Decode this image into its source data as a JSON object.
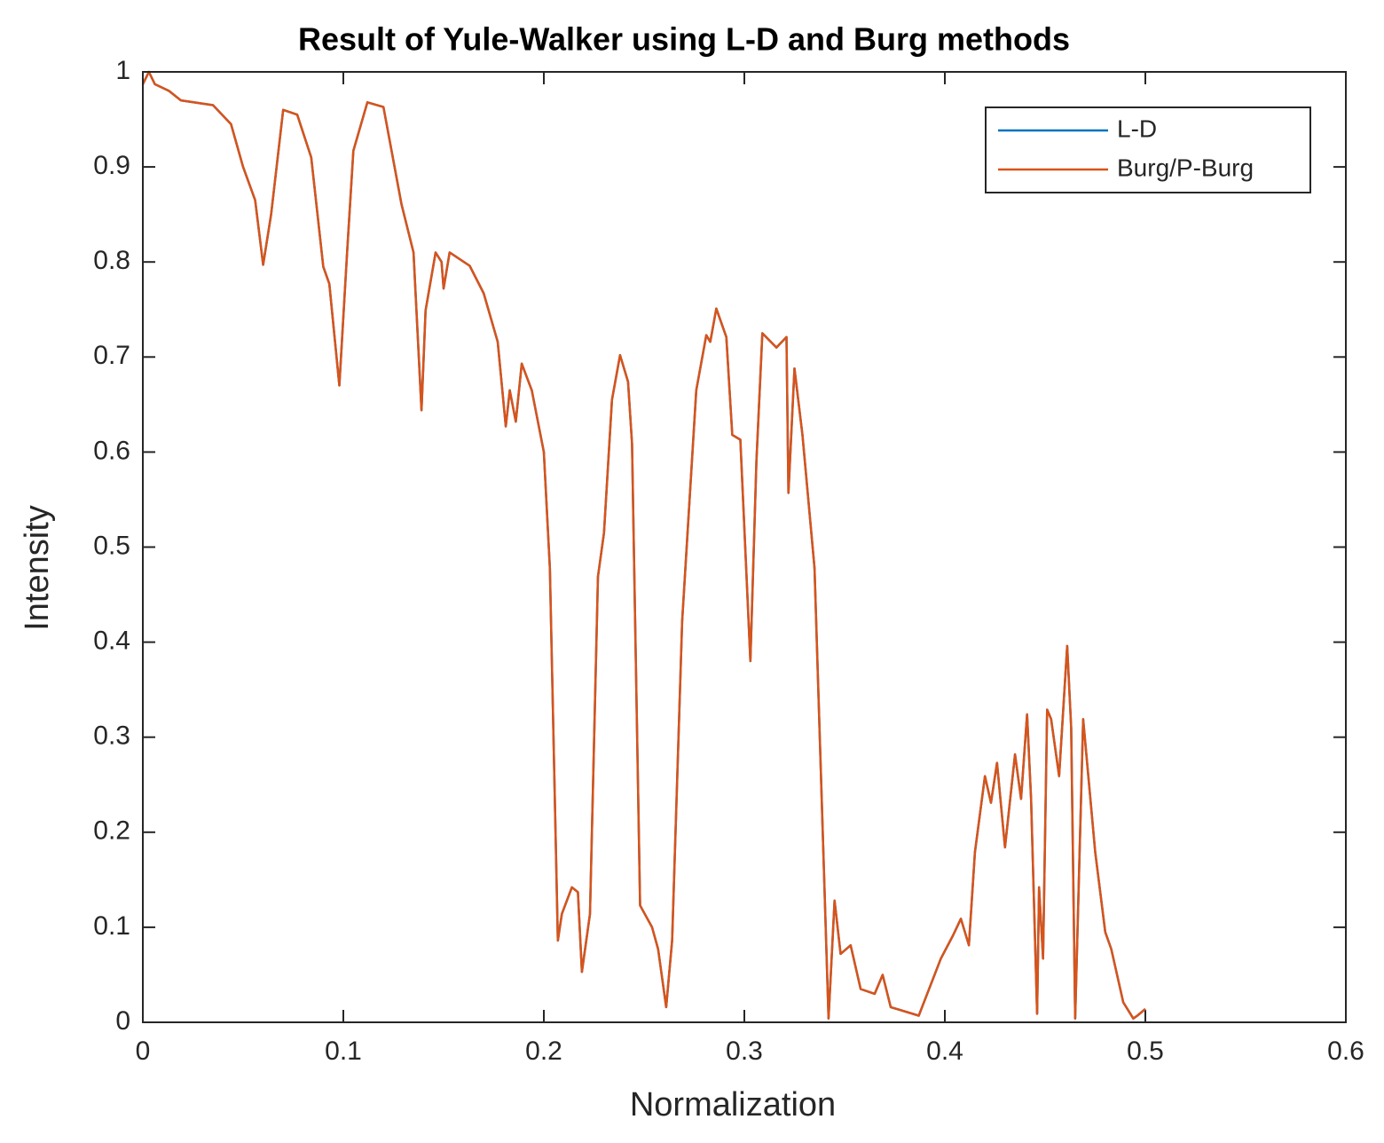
{
  "chart_data": {
    "type": "line",
    "title": "Result of Yule-Walker using L-D and Burg methods",
    "x_label": "Normalization",
    "y_label": "Intensity",
    "xlim": [
      0,
      0.6
    ],
    "ylim": [
      0,
      1
    ],
    "xticks": [
      0,
      0.1,
      0.2,
      0.3,
      0.4,
      0.5,
      0.6
    ],
    "yticks": [
      0,
      0.1,
      0.2,
      0.3,
      0.4,
      0.5,
      0.6,
      0.7,
      0.8,
      0.9,
      1
    ],
    "legend": "northeast",
    "box": true,
    "x": [
      0,
      0.003,
      0.006,
      0.013,
      0.019,
      0.035,
      0.044,
      0.05,
      0.056,
      0.06,
      0.064,
      0.07,
      0.077,
      0.084,
      0.09,
      0.093,
      0.098,
      0.102,
      0.105,
      0.112,
      0.12,
      0.129,
      0.135,
      0.139,
      0.141,
      0.146,
      0.149,
      0.15,
      0.153,
      0.163,
      0.17,
      0.177,
      0.181,
      0.183,
      0.186,
      0.189,
      0.194,
      0.2,
      0.203,
      0.207,
      0.209,
      0.214,
      0.217,
      0.219,
      0.223,
      0.227,
      0.23,
      0.234,
      0.238,
      0.242,
      0.244,
      0.248,
      0.254,
      0.257,
      0.261,
      0.264,
      0.269,
      0.276,
      0.281,
      0.283,
      0.286,
      0.291,
      0.294,
      0.298,
      0.303,
      0.306,
      0.309,
      0.316,
      0.321,
      0.322,
      0.325,
      0.329,
      0.335,
      0.342,
      0.345,
      0.348,
      0.353,
      0.358,
      0.365,
      0.369,
      0.373,
      0.387,
      0.398,
      0.404,
      0.408,
      0.412,
      0.415,
      0.42,
      0.423,
      0.426,
      0.43,
      0.435,
      0.438,
      0.441,
      0.443,
      0.446,
      0.447,
      0.449,
      0.451,
      0.453,
      0.457,
      0.461,
      0.463,
      0.465,
      0.469,
      0.475,
      0.48,
      0.483,
      0.489,
      0.494,
      0.496,
      0.5
    ],
    "series": [
      {
        "name": "L-D",
        "color": "#0072bd",
        "values": [
          0.987,
          1.0,
          0.987,
          0.98,
          0.97,
          0.965,
          0.945,
          0.9,
          0.865,
          0.797,
          0.85,
          0.96,
          0.955,
          0.91,
          0.795,
          0.777,
          0.67,
          0.814,
          0.917,
          0.968,
          0.963,
          0.861,
          0.81,
          0.644,
          0.749,
          0.81,
          0.8,
          0.772,
          0.81,
          0.796,
          0.767,
          0.716,
          0.627,
          0.665,
          0.632,
          0.693,
          0.665,
          0.6,
          0.478,
          0.086,
          0.114,
          0.142,
          0.137,
          0.053,
          0.114,
          0.469,
          0.515,
          0.655,
          0.702,
          0.674,
          0.609,
          0.123,
          0.1,
          0.077,
          0.016,
          0.086,
          0.422,
          0.665,
          0.723,
          0.716,
          0.751,
          0.721,
          0.618,
          0.613,
          0.38,
          0.59,
          0.725,
          0.71,
          0.721,
          0.557,
          0.688,
          0.618,
          0.478,
          0.004,
          0.128,
          0.072,
          0.081,
          0.035,
          0.03,
          0.05,
          0.016,
          0.007,
          0.067,
          0.091,
          0.109,
          0.081,
          0.179,
          0.259,
          0.231,
          0.273,
          0.184,
          0.282,
          0.235,
          0.324,
          0.235,
          0.009,
          0.142,
          0.067,
          0.329,
          0.319,
          0.259,
          0.396,
          0.31,
          0.004,
          0.319,
          0.179,
          0.095,
          0.077,
          0.021,
          0.004,
          0.007,
          0.014
        ]
      },
      {
        "name": "Burg/P-Burg",
        "color": "#d95319",
        "values": [
          0.987,
          1.0,
          0.987,
          0.98,
          0.97,
          0.965,
          0.945,
          0.9,
          0.865,
          0.797,
          0.85,
          0.96,
          0.955,
          0.91,
          0.795,
          0.777,
          0.67,
          0.814,
          0.917,
          0.968,
          0.963,
          0.861,
          0.81,
          0.644,
          0.749,
          0.81,
          0.8,
          0.772,
          0.81,
          0.796,
          0.767,
          0.716,
          0.627,
          0.665,
          0.632,
          0.693,
          0.665,
          0.6,
          0.478,
          0.086,
          0.114,
          0.142,
          0.137,
          0.053,
          0.114,
          0.469,
          0.515,
          0.655,
          0.702,
          0.674,
          0.609,
          0.123,
          0.1,
          0.077,
          0.016,
          0.086,
          0.422,
          0.665,
          0.723,
          0.716,
          0.751,
          0.721,
          0.618,
          0.613,
          0.38,
          0.59,
          0.725,
          0.71,
          0.721,
          0.557,
          0.688,
          0.618,
          0.478,
          0.004,
          0.128,
          0.072,
          0.081,
          0.035,
          0.03,
          0.05,
          0.016,
          0.007,
          0.067,
          0.091,
          0.109,
          0.081,
          0.179,
          0.259,
          0.231,
          0.273,
          0.184,
          0.282,
          0.235,
          0.324,
          0.235,
          0.009,
          0.142,
          0.067,
          0.329,
          0.319,
          0.259,
          0.396,
          0.31,
          0.004,
          0.319,
          0.179,
          0.095,
          0.077,
          0.021,
          0.004,
          0.007,
          0.014
        ]
      }
    ]
  }
}
